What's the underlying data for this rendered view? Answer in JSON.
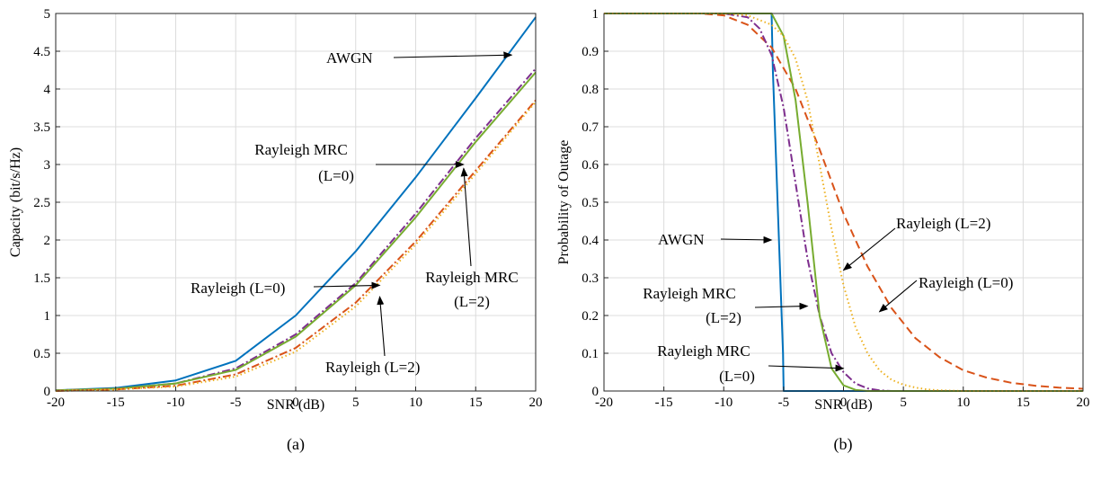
{
  "chart_data": [
    {
      "type": "line",
      "caption": "(a)",
      "xlabel": "SNR (dB)",
      "ylabel": "Capacity (bit/s/Hz)",
      "xlim": [
        -20,
        20
      ],
      "ylim": [
        0,
        5
      ],
      "xticks": [
        "-20",
        "-15",
        "-10",
        "-5",
        "0",
        "5",
        "10",
        "15",
        "20"
      ],
      "yticks": [
        "0",
        "0.5",
        "1",
        "1.5",
        "2",
        "2.5",
        "3",
        "3.5",
        "4",
        "4.5",
        "5"
      ],
      "grid": true,
      "x": [
        -20,
        -15,
        -10,
        -5,
        0,
        5,
        10,
        15,
        20
      ],
      "series": [
        {
          "name": "AWGN",
          "color": "#0072BD",
          "dash": "solid",
          "values": [
            0.01,
            0.04,
            0.14,
            0.4,
            1.0,
            1.85,
            2.83,
            3.88,
            4.95
          ]
        },
        {
          "name": "Rayleigh MRC (L=0)",
          "color": "#7E2F8E",
          "dash": "dashdot",
          "values": [
            0.01,
            0.03,
            0.1,
            0.3,
            0.75,
            1.43,
            2.35,
            3.35,
            4.27
          ]
        },
        {
          "name": "",
          "color": "#77AC30",
          "dash": "solid",
          "values": [
            0.01,
            0.03,
            0.1,
            0.28,
            0.72,
            1.4,
            2.3,
            3.3,
            4.22
          ]
        },
        {
          "name": "Rayleigh (L=0)",
          "color": "#D95319",
          "dash": "dashdot",
          "values": [
            0.0,
            0.02,
            0.07,
            0.22,
            0.57,
            1.17,
            1.98,
            2.92,
            3.85
          ]
        },
        {
          "name": "Rayleigh (L=2)",
          "color": "#EDB120",
          "dash": "dotted",
          "values": [
            0.0,
            0.02,
            0.06,
            0.19,
            0.52,
            1.12,
            1.94,
            2.88,
            3.83
          ]
        }
      ],
      "annotations": [
        {
          "text": "AWGN",
          "target": [
            18,
            4.45
          ]
        },
        {
          "lines": [
            "Rayleigh MRC",
            "(L=0)"
          ],
          "target": [
            14,
            3.0
          ]
        },
        {
          "lines": [
            "Rayleigh MRC",
            "(L=2)"
          ],
          "target": [
            14,
            2.95
          ]
        },
        {
          "text": "Rayleigh (L=0)",
          "target": [
            7,
            1.4
          ]
        },
        {
          "text": "Rayleigh (L=2)",
          "target": [
            7,
            1.25
          ]
        }
      ]
    },
    {
      "type": "line",
      "caption": "(b)",
      "xlabel": "SNR (dB)",
      "ylabel": "Probability of Outage",
      "xlim": [
        -20,
        20
      ],
      "ylim": [
        0,
        1
      ],
      "xticks": [
        "-20",
        "-15",
        "-10",
        "-5",
        "0",
        "5",
        "10",
        "15",
        "20"
      ],
      "yticks": [
        "0",
        "0.1",
        "0.2",
        "0.3",
        "0.4",
        "0.5",
        "0.6",
        "0.7",
        "0.8",
        "0.9",
        "1"
      ],
      "grid": true,
      "series": [
        {
          "name": "AWGN",
          "color": "#0072BD",
          "dash": "solid",
          "x": [
            -20,
            -6,
            -5.9,
            -5.05,
            -5,
            20
          ],
          "values": [
            1,
            1,
            0.85,
            0.1,
            0,
            0
          ]
        },
        {
          "name": "Rayleigh (L=0)",
          "color": "#D95319",
          "dash": "dashed",
          "x": [
            -20,
            -12,
            -10,
            -8,
            -6,
            -4,
            -2,
            0,
            2,
            4,
            6,
            8,
            10,
            12,
            14,
            16,
            18,
            20
          ],
          "values": [
            1,
            1,
            0.995,
            0.97,
            0.91,
            0.8,
            0.64,
            0.47,
            0.33,
            0.22,
            0.14,
            0.09,
            0.055,
            0.035,
            0.022,
            0.014,
            0.009,
            0.006
          ]
        },
        {
          "name": "Rayleigh MRC (L=0)",
          "color": "#7E2F8E",
          "dash": "dashdot",
          "x": [
            -20,
            -10,
            -8,
            -7,
            -6,
            -5,
            -4,
            -3,
            -2,
            -1,
            0,
            1,
            2,
            3,
            4,
            20
          ],
          "values": [
            1,
            1,
            0.99,
            0.96,
            0.89,
            0.75,
            0.55,
            0.35,
            0.2,
            0.1,
            0.05,
            0.02,
            0.007,
            0.002,
            0,
            0
          ]
        },
        {
          "name": "Rayleigh MRC (L=2)",
          "color": "#77AC30",
          "dash": "solid",
          "x": [
            -20,
            -6,
            -5,
            -4,
            -3,
            -2,
            -1,
            0,
            1,
            2,
            20
          ],
          "values": [
            1,
            1,
            0.94,
            0.77,
            0.5,
            0.2,
            0.06,
            0.015,
            0.003,
            0,
            0
          ]
        },
        {
          "name": "Rayleigh (L=2)",
          "color": "#EDB120",
          "dash": "dotted",
          "x": [
            -20,
            -10,
            -8,
            -6,
            -5,
            -4,
            -3,
            -2,
            -1,
            0,
            1,
            2,
            3,
            4,
            5,
            6,
            7,
            8,
            10,
            20
          ],
          "values": [
            1,
            1,
            0.995,
            0.97,
            0.94,
            0.88,
            0.77,
            0.6,
            0.43,
            0.28,
            0.17,
            0.1,
            0.055,
            0.03,
            0.017,
            0.009,
            0.004,
            0.002,
            0,
            0
          ]
        }
      ],
      "annotations": [
        {
          "text": "AWGN",
          "target": [
            -6,
            0.4
          ]
        },
        {
          "lines": [
            "Rayleigh MRC",
            "(L=2)"
          ],
          "target": [
            -3,
            0.225
          ]
        },
        {
          "lines": [
            "Rayleigh MRC",
            "(L=0)"
          ],
          "target": [
            0,
            0.06
          ]
        },
        {
          "text": "Rayleigh (L=2)",
          "target": [
            0,
            0.32
          ]
        },
        {
          "text": "Rayleigh (L=0)",
          "target": [
            3,
            0.21
          ]
        }
      ]
    }
  ]
}
